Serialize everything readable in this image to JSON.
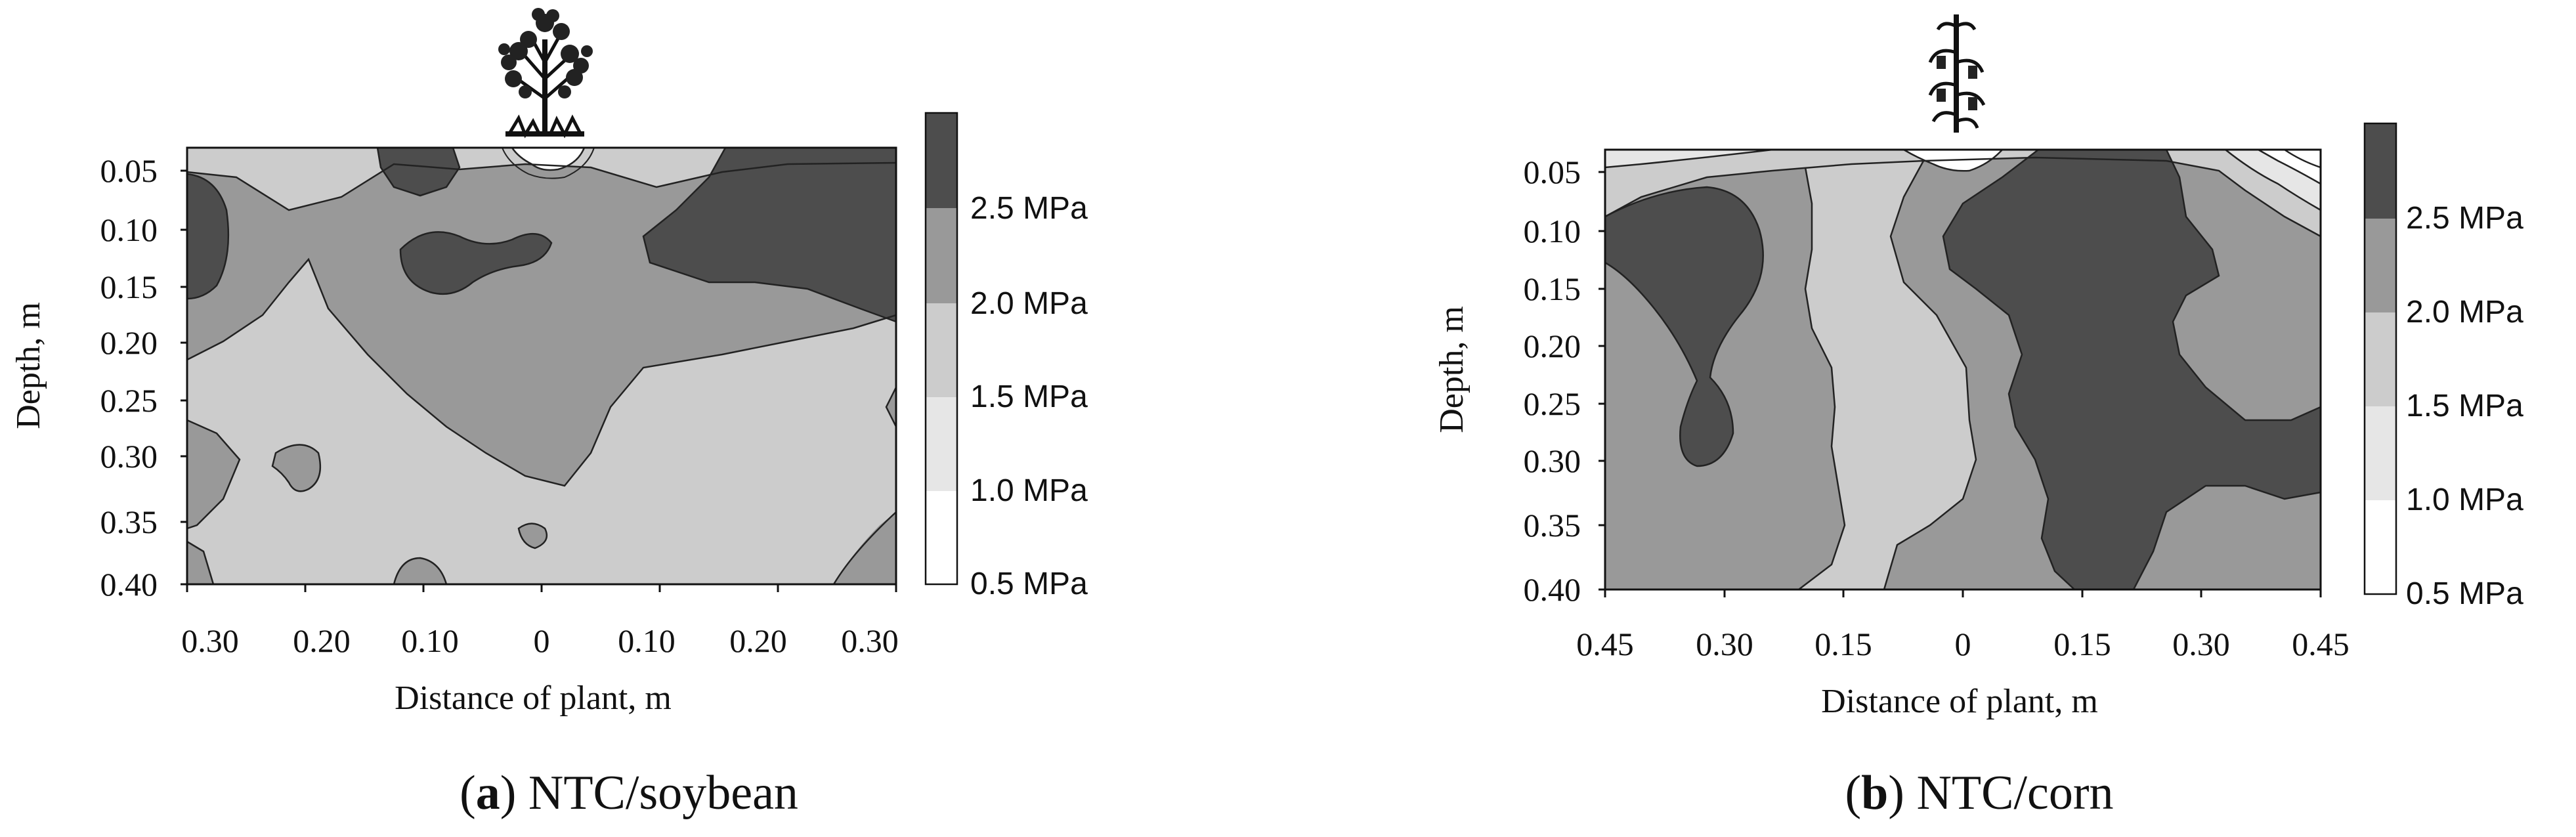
{
  "chart_data": [
    {
      "type": "heatmap",
      "panel_letter": "a",
      "caption": "NTC/soybean",
      "xlabel": "Distance of plant, m",
      "ylabel": "Depth, m",
      "x_tick_labels": [
        "0.30",
        "0.20",
        "0.10",
        "0",
        "0.10",
        "0.20",
        "0.30"
      ],
      "y_tick_labels": [
        "0.05",
        "0.10",
        "0.15",
        "0.20",
        "0.25",
        "0.30",
        "0.35",
        "0.40"
      ],
      "xlim": [
        -0.3,
        0.3
      ],
      "ylim": [
        0.02,
        0.4
      ],
      "legend": [
        "2.5 MPa",
        "2.0 MPa",
        "1.5 MPa",
        "1.0 MPa",
        "0.5 MPa"
      ],
      "levels": [
        0.5,
        1.0,
        1.5,
        2.0,
        2.5
      ],
      "level_colors": [
        "#ffffff",
        "#e6e6e6",
        "#cccccc",
        "#999999",
        "#4d4d4d"
      ],
      "plant_icon": "soybean-plant-icon"
    },
    {
      "type": "heatmap",
      "panel_letter": "b",
      "caption": "NTC/corn",
      "xlabel": "Distance of plant, m",
      "ylabel": "Depth, m",
      "x_tick_labels": [
        "0.45",
        "0.30",
        "0.15",
        "0",
        "0.15",
        "0.30",
        "0.45"
      ],
      "y_tick_labels": [
        "0.05",
        "0.10",
        "0.15",
        "0.20",
        "0.25",
        "0.30",
        "0.35",
        "0.40"
      ],
      "xlim": [
        -0.45,
        0.45
      ],
      "ylim": [
        0.02,
        0.4
      ],
      "legend": [
        "2.5 MPa",
        "2.0 MPa",
        "1.5 MPa",
        "1.0 MPa",
        "0.5 MPa"
      ],
      "levels": [
        0.5,
        1.0,
        1.5,
        2.0,
        2.5
      ],
      "level_colors": [
        "#ffffff",
        "#e6e6e6",
        "#cccccc",
        "#999999",
        "#4d4d4d"
      ],
      "plant_icon": "corn-plant-icon"
    }
  ]
}
